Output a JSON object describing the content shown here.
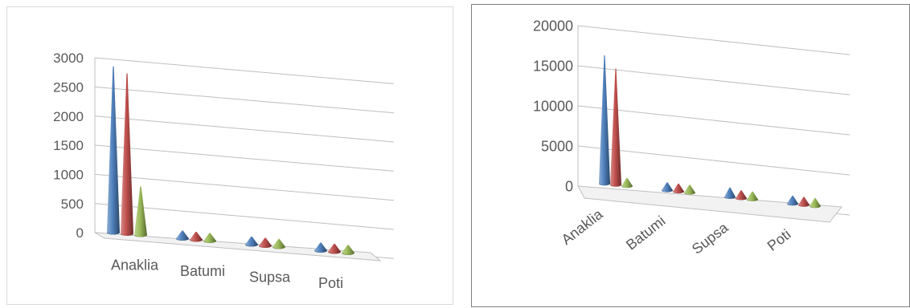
{
  "chart_data": [
    {
      "type": "bar",
      "title": "",
      "categories": [
        "Anaklia",
        "Batumi",
        "Supsa",
        "Poti"
      ],
      "series": [
        {
          "values": [
            2850,
            120,
            110,
            30
          ]
        },
        {
          "values": [
            2750,
            110,
            100,
            25
          ]
        },
        {
          "values": [
            830,
            30,
            40,
            20
          ]
        }
      ],
      "y_ticks": [
        "0",
        "500",
        "1000",
        "1500",
        "2000",
        "2500",
        "3000"
      ],
      "ylim": [
        0,
        3000
      ],
      "grid": true,
      "legend": "none"
    },
    {
      "type": "bar",
      "title": "",
      "categories": [
        "Anaklia",
        "Batumi",
        "Supsa",
        "Poti"
      ],
      "series": [
        {
          "values": [
            16000,
            600,
            1200,
            150
          ]
        },
        {
          "values": [
            14500,
            300,
            1000,
            120
          ]
        },
        {
          "values": [
            300,
            100,
            150,
            80
          ]
        }
      ],
      "y_ticks": [
        "0",
        "5000",
        "10000",
        "15000",
        "20000"
      ],
      "ylim": [
        0,
        20000
      ],
      "grid": true,
      "legend": "none"
    }
  ],
  "colors": {
    "series": [
      "#4f81bd",
      "#c0504d",
      "#9bbb59"
    ],
    "grid": "#bfbfbf",
    "text": "#595959"
  }
}
